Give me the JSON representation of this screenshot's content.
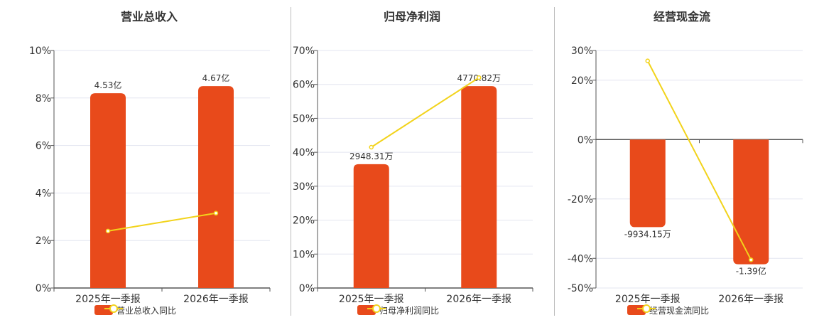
{
  "colors": {
    "bar": "#E84A1B",
    "line": "#F2D31B",
    "grid": "#E3E5F0",
    "axis": "#555555",
    "text": "#333333"
  },
  "chart_data": [
    {
      "type": "bar",
      "title": "营业总收入",
      "categories": [
        "2025年一季报",
        "2026年一季报"
      ],
      "ylim": [
        0,
        10
      ],
      "yticks": [
        "0%",
        "2%",
        "4%",
        "6%",
        "8%",
        "10%"
      ],
      "series": [
        {
          "name": "营业总收入",
          "kind": "bar",
          "values": [
            8.2,
            8.5
          ],
          "labels": [
            "4.53亿",
            "4.67亿"
          ]
        },
        {
          "name": "同比",
          "kind": "line",
          "values": [
            2.4,
            3.15
          ]
        }
      ],
      "grid": true,
      "legend": "bottom-center"
    },
    {
      "type": "bar",
      "title": "归母净利润",
      "categories": [
        "2025年一季报",
        "2026年一季报"
      ],
      "ylim": [
        0,
        70
      ],
      "yticks": [
        "0%",
        "10%",
        "20%",
        "30%",
        "40%",
        "50%",
        "60%",
        "70%"
      ],
      "series": [
        {
          "name": "归母净利润",
          "kind": "bar",
          "values": [
            36.5,
            59.5
          ],
          "labels": [
            "2948.31万",
            "4770.82万"
          ]
        },
        {
          "name": "同比",
          "kind": "line",
          "values": [
            41.5,
            62.0
          ]
        }
      ],
      "grid": true,
      "legend": "bottom-center"
    },
    {
      "type": "bar",
      "title": "经营现金流",
      "categories": [
        "2025年一季报",
        "2026年一季报"
      ],
      "ylim": [
        -50,
        30
      ],
      "yticks": [
        "-50%",
        "-40%",
        "-20%",
        "0%",
        "20%",
        "30%"
      ],
      "ytick_values": [
        -50,
        -40,
        -20,
        0,
        20,
        30
      ],
      "series": [
        {
          "name": "经营现金流",
          "kind": "bar",
          "values": [
            -29.5,
            -42
          ],
          "labels": [
            "-9934.15万",
            "-1.39亿"
          ]
        },
        {
          "name": "同比",
          "kind": "line",
          "values": [
            26.5,
            -40.5
          ]
        }
      ],
      "grid": true,
      "legend": "bottom-center"
    }
  ]
}
